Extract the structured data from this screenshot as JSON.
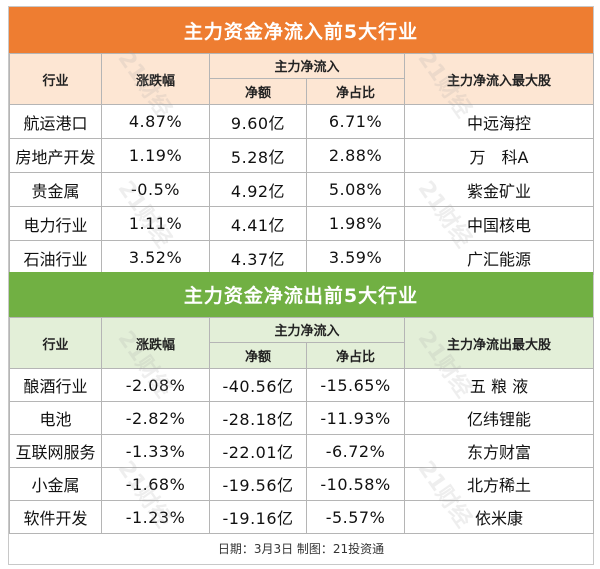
{
  "inflow": {
    "title": "主力资金净流入前5大行业",
    "headers": {
      "industry": "行业",
      "change": "涨跌幅",
      "group": "主力净流入",
      "amount": "净额",
      "ratio": "净占比",
      "top_stock": "主力净流入最大股"
    },
    "rows": [
      {
        "industry": "航运港口",
        "change": "4.87%",
        "amount": "9.60亿",
        "ratio": "6.71%",
        "top_stock": "中远海控"
      },
      {
        "industry": "房地产开发",
        "change": "1.19%",
        "amount": "5.28亿",
        "ratio": "2.88%",
        "top_stock": "万　科A"
      },
      {
        "industry": "贵金属",
        "change": "-0.5%",
        "amount": "4.92亿",
        "ratio": "5.08%",
        "top_stock": "紫金矿业"
      },
      {
        "industry": "电力行业",
        "change": "1.11%",
        "amount": "4.41亿",
        "ratio": "1.98%",
        "top_stock": "中国核电"
      },
      {
        "industry": "石油行业",
        "change": "3.52%",
        "amount": "4.37亿",
        "ratio": "3.59%",
        "top_stock": "广汇能源"
      }
    ]
  },
  "outflow": {
    "title": "主力资金净流出前5大行业",
    "headers": {
      "industry": "行业",
      "change": "涨跌幅",
      "group": "主力净流入",
      "amount": "净额",
      "ratio": "净占比",
      "top_stock": "主力净流出最大股"
    },
    "rows": [
      {
        "industry": "酿酒行业",
        "change": "-2.08%",
        "amount": "-40.56亿",
        "ratio": "-15.65%",
        "top_stock": "五 粮 液"
      },
      {
        "industry": "电池",
        "change": "-2.82%",
        "amount": "-28.18亿",
        "ratio": "-11.93%",
        "top_stock": "亿纬锂能"
      },
      {
        "industry": "互联网服务",
        "change": "-1.33%",
        "amount": "-22.01亿",
        "ratio": "-6.72%",
        "top_stock": "东方财富"
      },
      {
        "industry": "小金属",
        "change": "-1.68%",
        "amount": "-19.56亿",
        "ratio": "-10.58%",
        "top_stock": "北方稀土"
      },
      {
        "industry": "软件开发",
        "change": "-1.23%",
        "amount": "-19.16亿",
        "ratio": "-5.57%",
        "top_stock": "依米康"
      }
    ]
  },
  "footer": "日期：3月3日 制图：21投资通",
  "watermark": "21财经",
  "colors": {
    "inflow_banner": "#ee7d31",
    "inflow_header": "#fde6d3",
    "outflow_banner": "#71b043",
    "outflow_header": "#e3efd8"
  }
}
